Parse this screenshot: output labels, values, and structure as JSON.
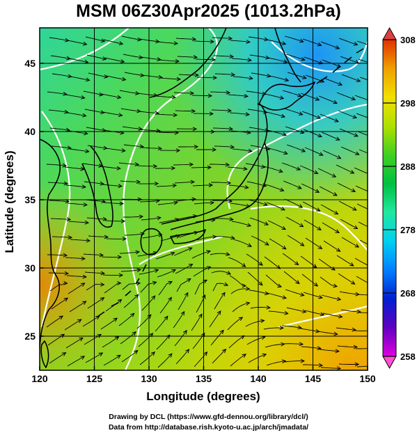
{
  "title": "MSM 06Z30Apr2025 (1013.2hPa)",
  "x_axis": {
    "label": "Longitude (degrees)",
    "min": 120,
    "max": 150,
    "ticks": [
      "120",
      "125",
      "130",
      "135",
      "140",
      "145",
      "150"
    ]
  },
  "y_axis": {
    "label": "Latitude  (degrees)",
    "min": 22.5,
    "max": 47.6,
    "ticks": [
      "25",
      "30",
      "35",
      "40",
      "45"
    ]
  },
  "colorbar": {
    "min": 258,
    "max": 308,
    "ticks": [
      "258",
      "268",
      "278",
      "288",
      "298",
      "308"
    ],
    "colors": [
      "#e000e0",
      "#6000c0",
      "#0020d0",
      "#0080ff",
      "#00d0f0",
      "#20e8a0",
      "#00c040",
      "#40d020",
      "#b0e000",
      "#f0e000",
      "#f0a000",
      "#e03000"
    ]
  },
  "map": {
    "background_color": "#5ad040",
    "isoline_color": "#ffffff",
    "coast_color": "#000000",
    "streamline_color": "#000000"
  },
  "credits": [
    "Drawing by DCL (https://www.gfd-dennou.org/library/dcl/)",
    "Data from http://database.rish.kyoto-u.ac.jp/arch/jmadata/"
  ]
}
